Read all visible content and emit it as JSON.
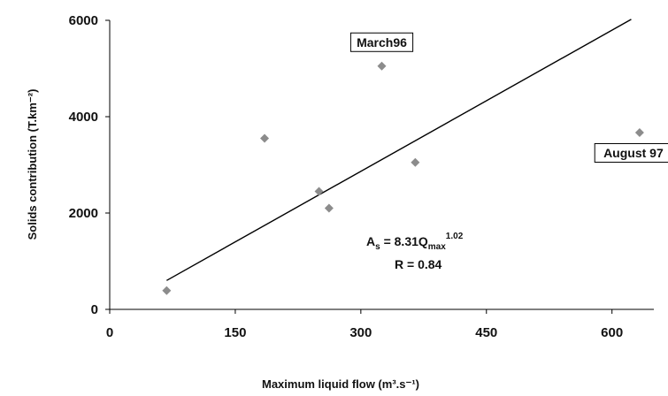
{
  "chart_data": {
    "type": "scatter",
    "xlabel": "Maximum liquid flow  (m³.s⁻¹)",
    "ylabel": "Solids contribution  (T.km⁻²)",
    "xlim": [
      0,
      650
    ],
    "ylim": [
      0,
      6000
    ],
    "xticks": [
      0,
      150,
      300,
      450,
      600
    ],
    "yticks": [
      0,
      2000,
      4000,
      6000
    ],
    "xtick_labels": [
      "0",
      "150",
      "300",
      "450",
      "600"
    ],
    "ytick_labels": [
      "0",
      "2000",
      "4000",
      "6000"
    ],
    "points": [
      {
        "x": 68,
        "y": 390
      },
      {
        "x": 185,
        "y": 3550
      },
      {
        "x": 250,
        "y": 2450
      },
      {
        "x": 262,
        "y": 2100
      },
      {
        "x": 325,
        "y": 5050
      },
      {
        "x": 365,
        "y": 3050
      },
      {
        "x": 633,
        "y": 3670
      }
    ],
    "trendline": {
      "x": [
        68,
        623
      ],
      "y": [
        600,
        6020
      ]
    },
    "marker_color": "#8c8c8c",
    "line_color": "#000000",
    "annotations": [
      {
        "text": "March96",
        "x": 325,
        "y": 5050,
        "boxed": true
      },
      {
        "text": "August 97",
        "x": 633,
        "y": 3670,
        "boxed": true
      }
    ],
    "equation": {
      "A": "A",
      "A_sub": "s",
      "mid": " = 8.31Q",
      "Q_sub": "max",
      "exp": "1.02",
      "r_text": "R = 0.84"
    },
    "grid": false
  }
}
